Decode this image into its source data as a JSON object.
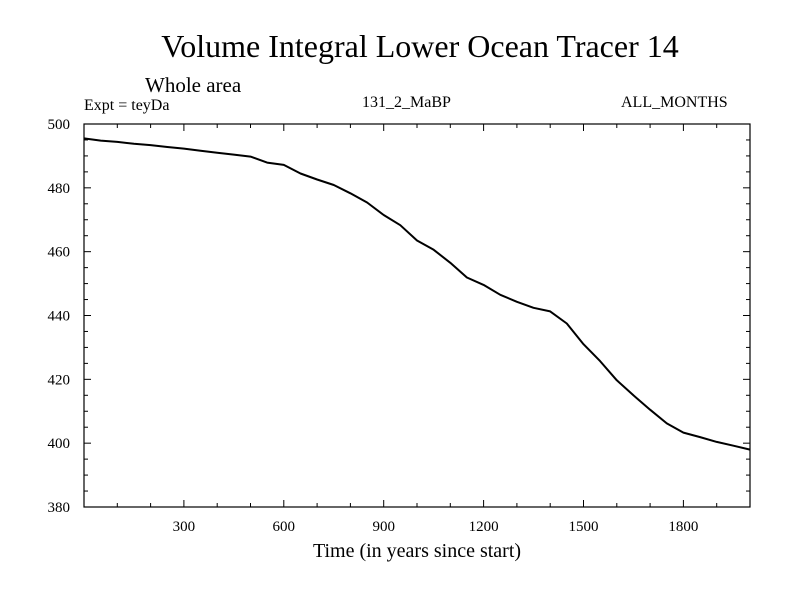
{
  "chart_data": {
    "type": "line",
    "title": "Volume Integral Lower Ocean Tracer 14",
    "subtitle": "Whole area",
    "expt_label": "Expt = teyDa",
    "center_label": "131_2_MaBP",
    "right_label": "ALL_MONTHS",
    "xlabel": "Time (in years since start)",
    "ylabel": "",
    "xlim": [
      0,
      2000
    ],
    "ylim": [
      380,
      500
    ],
    "x_ticks": [
      300,
      600,
      900,
      1200,
      1500,
      1800
    ],
    "y_ticks": [
      380,
      400,
      420,
      440,
      460,
      480,
      500
    ],
    "line_color": "#000000",
    "series": [
      {
        "name": "Tracer 14",
        "x": [
          0,
          50,
          100,
          150,
          200,
          250,
          300,
          350,
          400,
          450,
          500,
          550,
          600,
          650,
          700,
          750,
          800,
          850,
          900,
          950,
          1000,
          1050,
          1100,
          1150,
          1200,
          1250,
          1300,
          1350,
          1400,
          1450,
          1500,
          1550,
          1600,
          1650,
          1700,
          1750,
          1800,
          1850,
          1900,
          1950,
          2000
        ],
        "values": [
          495.5,
          494.8,
          494.4,
          493.8,
          493.4,
          492.8,
          492.3,
          491.6,
          491.0,
          490.4,
          489.8,
          487.9,
          487.2,
          484.5,
          482.6,
          480.9,
          478.3,
          475.4,
          471.5,
          468.3,
          463.5,
          460.6,
          456.5,
          451.9,
          449.6,
          446.5,
          444.3,
          442.4,
          441.3,
          437.5,
          431.0,
          425.7,
          419.7,
          415.0,
          410.5,
          406.2,
          403.3,
          401.9,
          400.4,
          399.2,
          398.0
        ]
      }
    ]
  }
}
